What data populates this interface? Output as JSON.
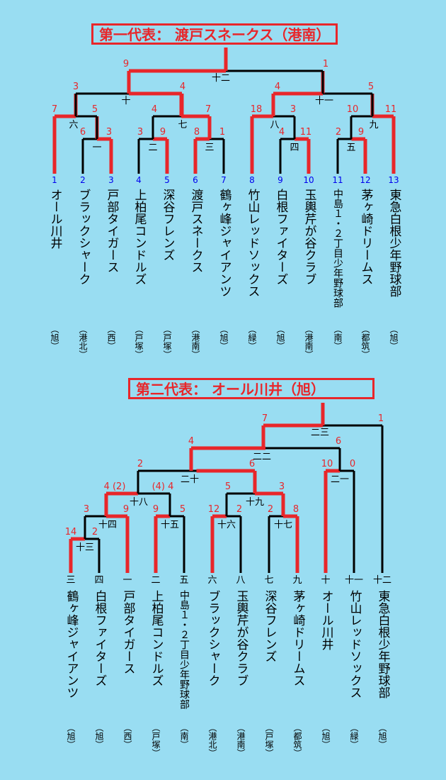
{
  "section1": {
    "title": "第一代表： 渡戸スネークス（港南）",
    "teams": [
      {
        "num": "1",
        "name": "オール川井",
        "area": "（旭）"
      },
      {
        "num": "2",
        "name": "ブラックシャーク",
        "area": "（港北）"
      },
      {
        "num": "3",
        "name": "戸部タイガース",
        "area": "（西）"
      },
      {
        "num": "4",
        "name": "上柏尾コンドルズ",
        "area": "（戸塚）"
      },
      {
        "num": "5",
        "name": "深谷フレンズ",
        "area": "（戸塚）"
      },
      {
        "num": "6",
        "name": "渡戸スネークス",
        "area": "（港南）"
      },
      {
        "num": "7",
        "name": "鶴ヶ峰ジャイアンツ",
        "area": "（旭）"
      },
      {
        "num": "8",
        "name": "竹山レッドソックス",
        "area": "（緑）"
      },
      {
        "num": "9",
        "name": "白根ファイターズ",
        "area": "（旭）"
      },
      {
        "num": "10",
        "name": "玉輿芹が谷クラブ",
        "area": "（港南）"
      },
      {
        "num": "11",
        "name": "中島１・２丁目少年野球部",
        "area": "（南）"
      },
      {
        "num": "12",
        "name": "茅ヶ崎ドリームス",
        "area": "（都筑）"
      },
      {
        "num": "13",
        "name": "東急白根少年野球部",
        "area": "（旭）"
      }
    ],
    "games": {
      "g1": "一",
      "g2": "二",
      "g3": "三",
      "g4": "四",
      "g5": "五",
      "g6": "六",
      "g7": "七",
      "g8": "八",
      "g9": "九",
      "g10": "十",
      "g11": "十一",
      "g12": "十二"
    },
    "scores": {
      "g1_l": "6",
      "g1_r": "3",
      "g2_l": "3",
      "g2_r": "9",
      "g3_l": "8",
      "g3_r": "1",
      "g4_l": "4",
      "g4_r": "11",
      "g5_l": "2",
      "g5_r": "9",
      "g6_l": "7",
      "g6_r": "5",
      "g7_l": "4",
      "g7_r": "7",
      "g8_l": "18",
      "g8_r": "3",
      "g9_l": "10",
      "g9_r": "11",
      "g10_l": "3",
      "g10_r": "4",
      "g11_l": "4",
      "g11_r": "5",
      "g12_l": "9",
      "g12_r": "1"
    }
  },
  "section2": {
    "title": "第二代表： オール川井（旭）",
    "teams": [
      {
        "num": "三",
        "name": "鶴ヶ峰ジャイアンツ",
        "area": "（旭）"
      },
      {
        "num": "四",
        "name": "白根ファイターズ",
        "area": "（旭）"
      },
      {
        "num": "一",
        "name": "戸部タイガース",
        "area": "（西）"
      },
      {
        "num": "二",
        "name": "上柏尾コンドルズ",
        "area": "（戸塚）"
      },
      {
        "num": "五",
        "name": "中島１・２丁目少年野球部",
        "area": "（南）"
      },
      {
        "num": "六",
        "name": "ブラックシャーク",
        "area": "（港北）"
      },
      {
        "num": "八",
        "name": "玉輿芹が谷クラブ",
        "area": "（港南）"
      },
      {
        "num": "七",
        "name": "深谷フレンズ",
        "area": "（戸塚）"
      },
      {
        "num": "九",
        "name": "茅ヶ崎ドリームス",
        "area": "（都筑）"
      },
      {
        "num": "十",
        "name": "オール川井",
        "area": "（旭）"
      },
      {
        "num": "十一",
        "name": "竹山レッドソックス",
        "area": "（緑）"
      },
      {
        "num": "十二",
        "name": "東急白根少年野球部",
        "area": "（旭）"
      }
    ],
    "games": {
      "g13": "十三",
      "g14": "十四",
      "g15": "十五",
      "g16": "十六",
      "g17": "十七",
      "g18": "十八",
      "g19": "十九",
      "g20": "二十",
      "g21": "二一",
      "g22": "二二",
      "g23": "二三"
    },
    "scores": {
      "g13_l": "14",
      "g13_r": "2",
      "g14_l": "3",
      "g14_r": "9",
      "g15_l": "9",
      "g15_r": "5",
      "g16_l": "12",
      "g16_r": "2",
      "g17_l": "2",
      "g17_r": "8",
      "g18_l": "4 (2)",
      "g18_r": "(4) 4",
      "g19_l": "5",
      "g19_r": "3",
      "g20_l": "2",
      "g20_r": "6",
      "g21_l": "10",
      "g21_r": "0",
      "g22_l": "4",
      "g22_r": "6",
      "g23_l": "7",
      "g23_r": "1"
    }
  },
  "colors": {
    "background": "#99ddf2",
    "winner_line": "#e8262a",
    "loser_line": "#000000",
    "score_text": "#e8262a",
    "team_number": "#0000ee",
    "text": "#000000"
  }
}
